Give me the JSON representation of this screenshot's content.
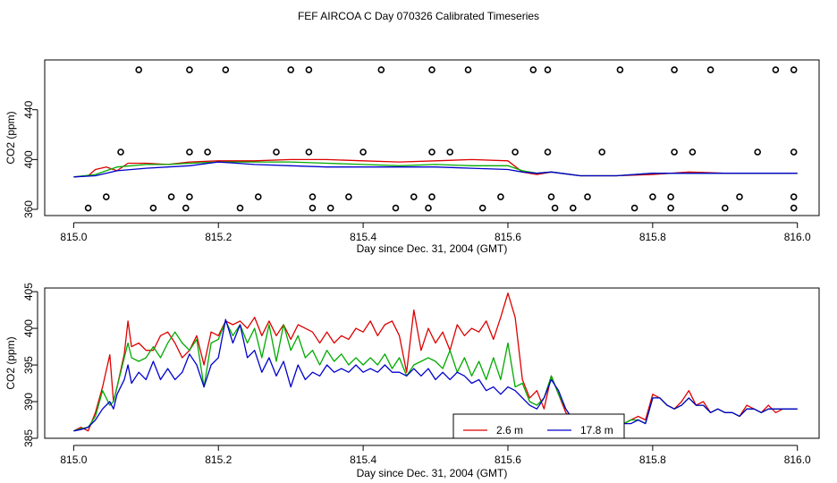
{
  "figure_title": "FEF AIRCOA C  Day 070326  Calibrated Timeseries",
  "chart_data": [
    {
      "type": "line",
      "title": "",
      "xlabel": "Day since Dec. 31, 2004 (GMT)",
      "ylabel": "CO2 (ppm)",
      "xlim": [
        814.96,
        816.03
      ],
      "ylim": [
        355,
        480
      ],
      "xticks": [
        815.0,
        815.2,
        815.4,
        815.6,
        815.8,
        816.0
      ],
      "xtick_labels": [
        "815.0",
        "815.2",
        "815.4",
        "815.6",
        "815.8",
        "816.0"
      ],
      "yticks": [
        360,
        400,
        440
      ],
      "ytick_labels": [
        "360",
        "400",
        "440"
      ],
      "series": [
        {
          "name": "2.6 m",
          "color": "#dd0000",
          "x": [
            815.0,
            815.02,
            815.03,
            815.045,
            815.06,
            815.075,
            815.1,
            815.13,
            815.16,
            815.2,
            815.25,
            815.3,
            815.35,
            815.4,
            815.45,
            815.5,
            815.55,
            815.6,
            815.62,
            815.64,
            815.66,
            815.7,
            815.75,
            815.8,
            815.85,
            815.9,
            815.95,
            816.0
          ],
          "y": [
            386,
            387,
            392,
            394,
            391,
            397,
            397,
            396,
            398,
            399,
            399,
            400,
            400,
            399,
            398,
            399,
            400,
            399,
            390,
            388,
            390,
            387,
            387,
            388,
            390,
            389,
            389,
            389
          ]
        },
        {
          "name": "17.8 m",
          "color": "#0000cc",
          "x": [
            815.0,
            815.03,
            815.06,
            815.1,
            815.13,
            815.16,
            815.2,
            815.25,
            815.3,
            815.35,
            815.4,
            815.45,
            815.5,
            815.55,
            815.6,
            815.62,
            815.64,
            815.66,
            815.7,
            815.75,
            815.8,
            815.85,
            815.9,
            815.95,
            816.0
          ],
          "y": [
            386,
            387,
            391,
            393,
            394,
            395,
            398,
            396,
            395,
            394,
            394,
            394,
            394,
            393,
            392,
            390,
            389,
            390,
            387,
            387,
            389,
            389,
            389,
            389,
            389
          ]
        },
        {
          "name": "green",
          "color": "#00aa00",
          "x": [
            815.0,
            815.03,
            815.06,
            815.1,
            815.13,
            815.16,
            815.2,
            815.25,
            815.3,
            815.35,
            815.4,
            815.45,
            815.5,
            815.55,
            815.6,
            815.62,
            815.64,
            815.66,
            815.7,
            815.75,
            815.8,
            815.85,
            815.9,
            815.95,
            816.0
          ],
          "y": [
            386,
            388,
            394,
            396,
            396,
            397,
            398,
            398,
            398,
            397,
            396,
            395,
            396,
            395,
            395,
            391,
            389,
            390,
            387,
            387,
            389,
            389,
            389,
            389,
            389
          ]
        }
      ],
      "markers": {
        "style": "open-circle",
        "x_top": [
          815.09,
          815.16,
          815.21,
          815.3,
          815.325,
          815.425,
          815.495,
          815.545,
          815.635,
          815.655,
          815.755,
          815.83,
          815.88,
          815.97,
          815.995
        ],
        "y_top": 472,
        "x_mid": [
          815.065,
          815.16,
          815.185,
          815.28,
          815.325,
          815.4,
          815.495,
          815.52,
          815.61,
          815.655,
          815.73,
          815.83,
          815.855,
          815.945,
          815.995
        ],
        "y_mid": 406,
        "x_low": [
          815.045,
          815.135,
          815.16,
          815.255,
          815.33,
          815.38,
          815.47,
          815.495,
          815.59,
          815.66,
          815.71,
          815.8,
          815.825,
          815.92,
          815.995
        ],
        "y_low": 370,
        "x_bot": [
          815.02,
          815.11,
          815.155,
          815.23,
          815.33,
          815.355,
          815.445,
          815.49,
          815.565,
          815.665,
          815.69,
          815.775,
          815.825,
          815.9,
          815.995
        ],
        "y_bot": 361
      }
    },
    {
      "type": "line",
      "title": "",
      "xlabel": "Day since Dec. 31, 2004 (GMT)",
      "ylabel": "CO2 (ppm)",
      "xlim": [
        814.96,
        816.03
      ],
      "ylim": [
        385,
        405.5
      ],
      "xticks": [
        815.0,
        815.2,
        815.4,
        815.6,
        815.8,
        816.0
      ],
      "xtick_labels": [
        "815.0",
        "815.2",
        "815.4",
        "815.6",
        "815.8",
        "816.0"
      ],
      "yticks": [
        385,
        390,
        395,
        400,
        405
      ],
      "ytick_labels": [
        "385",
        "390",
        "395",
        "400",
        "405"
      ],
      "legend": {
        "position": "bottom-center",
        "entries": [
          "2.6 m",
          "17.8 m"
        ]
      },
      "series": [
        {
          "name": "2.6 m",
          "color": "#dd0000",
          "x": [
            815.0,
            815.01,
            815.02,
            815.03,
            815.04,
            815.05,
            815.055,
            815.06,
            815.07,
            815.075,
            815.08,
            815.09,
            815.1,
            815.11,
            815.12,
            815.13,
            815.14,
            815.15,
            815.16,
            815.17,
            815.18,
            815.19,
            815.2,
            815.21,
            815.22,
            815.23,
            815.24,
            815.25,
            815.26,
            815.27,
            815.28,
            815.29,
            815.3,
            815.31,
            815.32,
            815.33,
            815.34,
            815.35,
            815.36,
            815.37,
            815.38,
            815.39,
            815.4,
            815.41,
            815.42,
            815.43,
            815.44,
            815.45,
            815.46,
            815.47,
            815.48,
            815.49,
            815.5,
            815.51,
            815.52,
            815.53,
            815.54,
            815.55,
            815.56,
            815.57,
            815.58,
            815.59,
            815.6,
            815.61,
            815.62,
            815.63,
            815.64,
            815.65,
            815.66,
            815.67,
            815.68,
            815.69,
            815.7,
            815.71,
            815.72,
            815.73,
            815.74,
            815.75,
            815.76,
            815.77,
            815.78,
            815.79,
            815.8,
            815.81,
            815.82,
            815.83,
            815.84,
            815.85,
            815.86,
            815.87,
            815.88,
            815.89,
            815.9,
            815.91,
            815.92,
            815.93,
            815.94,
            815.95,
            815.96,
            815.97,
            815.98,
            815.99,
            816.0
          ],
          "y": [
            386.0,
            386.5,
            386.0,
            388.5,
            392.0,
            396.4,
            390.0,
            392.0,
            396.5,
            401.0,
            397.5,
            398.0,
            397.0,
            397.0,
            399.0,
            399.5,
            398.0,
            396.0,
            397.0,
            399.0,
            395.0,
            399.5,
            399.0,
            401.0,
            400.5,
            401.0,
            400.0,
            401.5,
            399.0,
            401.0,
            399.0,
            400.5,
            398.5,
            400.5,
            400.0,
            399.5,
            398.0,
            399.5,
            398.0,
            399.0,
            398.5,
            400.0,
            399.5,
            401.0,
            399.0,
            400.5,
            401.0,
            399.0,
            394.0,
            402.5,
            397.0,
            400.0,
            398.0,
            399.5,
            397.0,
            400.5,
            399.0,
            400.0,
            399.5,
            401.0,
            398.5,
            401.5,
            404.8,
            401.5,
            393.0,
            390.5,
            391.5,
            389.0,
            393.5,
            391.0,
            388.5,
            387.5,
            387.0,
            387.5,
            387.0,
            388.0,
            387.0,
            387.5,
            387.0,
            387.5,
            388.0,
            387.5,
            391.0,
            390.5,
            389.5,
            389.0,
            390.0,
            391.5,
            389.5,
            390.0,
            388.5,
            389.0,
            388.5,
            388.5,
            388.0,
            389.5,
            389.0,
            388.5,
            389.5,
            388.5,
            389.0,
            389.0,
            389.0
          ]
        },
        {
          "name": "17.8 m",
          "color": "#0000cc",
          "x": [
            815.0,
            815.01,
            815.02,
            815.03,
            815.04,
            815.05,
            815.055,
            815.06,
            815.07,
            815.075,
            815.08,
            815.09,
            815.1,
            815.11,
            815.12,
            815.13,
            815.14,
            815.15,
            815.16,
            815.17,
            815.18,
            815.19,
            815.2,
            815.21,
            815.22,
            815.23,
            815.24,
            815.25,
            815.26,
            815.27,
            815.28,
            815.29,
            815.3,
            815.31,
            815.32,
            815.33,
            815.34,
            815.35,
            815.36,
            815.37,
            815.38,
            815.39,
            815.4,
            815.41,
            815.42,
            815.43,
            815.44,
            815.45,
            815.46,
            815.47,
            815.48,
            815.49,
            815.5,
            815.51,
            815.52,
            815.53,
            815.54,
            815.55,
            815.56,
            815.57,
            815.58,
            815.59,
            815.6,
            815.61,
            815.62,
            815.63,
            815.64,
            815.65,
            815.66,
            815.67,
            815.68,
            815.69,
            815.7,
            815.71,
            815.72,
            815.73,
            815.74,
            815.75,
            815.76,
            815.77,
            815.78,
            815.79,
            815.8,
            815.81,
            815.82,
            815.83,
            815.84,
            815.85,
            815.86,
            815.87,
            815.88,
            815.89,
            815.9,
            815.91,
            815.92,
            815.93,
            815.94,
            815.95,
            815.96,
            815.97,
            815.98,
            815.99,
            816.0
          ],
          "y": [
            386.0,
            386.2,
            386.5,
            387.5,
            389.0,
            390.0,
            389.0,
            391.0,
            393.0,
            395.0,
            392.5,
            394.0,
            393.0,
            395.5,
            393.0,
            394.5,
            393.0,
            394.0,
            396.5,
            395.0,
            392.0,
            395.0,
            396.0,
            401.2,
            398.0,
            400.5,
            396.0,
            397.0,
            394.0,
            396.0,
            393.5,
            395.5,
            392.0,
            395.0,
            393.0,
            394.0,
            393.5,
            395.0,
            394.0,
            394.5,
            394.0,
            395.0,
            394.0,
            394.5,
            394.0,
            395.0,
            394.0,
            394.0,
            393.5,
            394.5,
            393.5,
            394.5,
            393.0,
            394.0,
            393.0,
            394.0,
            393.5,
            392.5,
            393.0,
            391.5,
            392.0,
            391.0,
            392.0,
            391.5,
            390.5,
            389.5,
            389.0,
            390.5,
            393.0,
            391.5,
            389.0,
            387.5,
            387.0,
            387.0,
            387.5,
            387.0,
            387.0,
            387.5,
            387.0,
            387.0,
            387.5,
            387.0,
            390.5,
            390.5,
            389.5,
            389.0,
            389.5,
            390.5,
            389.5,
            389.5,
            388.5,
            389.0,
            388.5,
            388.5,
            388.0,
            389.0,
            389.0,
            388.5,
            389.0,
            389.0,
            389.0,
            389.0,
            389.0
          ]
        },
        {
          "name": "green",
          "color": "#00aa00",
          "x": [
            815.0,
            815.01,
            815.02,
            815.03,
            815.04,
            815.05,
            815.055,
            815.06,
            815.07,
            815.075,
            815.08,
            815.09,
            815.1,
            815.11,
            815.12,
            815.13,
            815.14,
            815.15,
            815.16,
            815.17,
            815.18,
            815.19,
            815.2,
            815.21,
            815.22,
            815.23,
            815.24,
            815.25,
            815.26,
            815.27,
            815.28,
            815.29,
            815.3,
            815.31,
            815.32,
            815.33,
            815.34,
            815.35,
            815.36,
            815.37,
            815.38,
            815.39,
            815.4,
            815.41,
            815.42,
            815.43,
            815.44,
            815.45,
            815.46,
            815.47,
            815.48,
            815.49,
            815.5,
            815.51,
            815.52,
            815.53,
            815.54,
            815.55,
            815.56,
            815.57,
            815.58,
            815.59,
            815.6,
            815.61,
            815.62,
            815.63,
            815.64,
            815.65,
            815.66,
            815.67,
            815.68,
            815.69,
            815.7,
            815.71,
            815.72,
            815.73,
            815.74,
            815.75,
            815.76,
            815.77,
            815.78,
            815.79,
            815.8,
            815.81,
            815.82,
            815.83,
            815.84,
            815.85,
            815.86,
            815.87,
            815.88,
            815.89,
            815.9,
            815.91,
            815.92,
            815.93,
            815.94,
            815.95,
            815.96,
            815.97,
            815.98,
            815.99,
            816.0
          ],
          "y": [
            386.0,
            386.3,
            386.5,
            388.0,
            391.5,
            389.5,
            390.0,
            392.0,
            396.0,
            398.0,
            396.0,
            395.5,
            396.0,
            397.5,
            396.0,
            398.0,
            399.5,
            398.0,
            397.0,
            398.5,
            392.0,
            398.0,
            398.5,
            401.0,
            399.0,
            400.5,
            398.0,
            400.0,
            396.0,
            400.5,
            395.5,
            400.5,
            397.0,
            399.0,
            396.0,
            397.0,
            395.0,
            397.0,
            395.5,
            396.5,
            395.0,
            396.0,
            395.0,
            396.0,
            395.0,
            396.5,
            394.5,
            396.0,
            393.5,
            395.0,
            395.5,
            396.0,
            395.5,
            394.5,
            397.0,
            394.0,
            396.0,
            393.5,
            395.5,
            393.0,
            396.0,
            393.0,
            398.0,
            392.0,
            392.5,
            390.0,
            389.5,
            390.5,
            393.5,
            391.0,
            389.0,
            387.5,
            387.0,
            387.5,
            387.0,
            387.5,
            387.0,
            387.5,
            387.0,
            387.5,
            387.5,
            387.0,
            390.5,
            390.5,
            389.5,
            389.0,
            389.5,
            390.5,
            389.5,
            389.5,
            388.5,
            389.0,
            388.5,
            388.5,
            388.0,
            389.0,
            389.0,
            388.5,
            389.0,
            389.0,
            389.0,
            389.0,
            389.0
          ]
        }
      ]
    }
  ]
}
